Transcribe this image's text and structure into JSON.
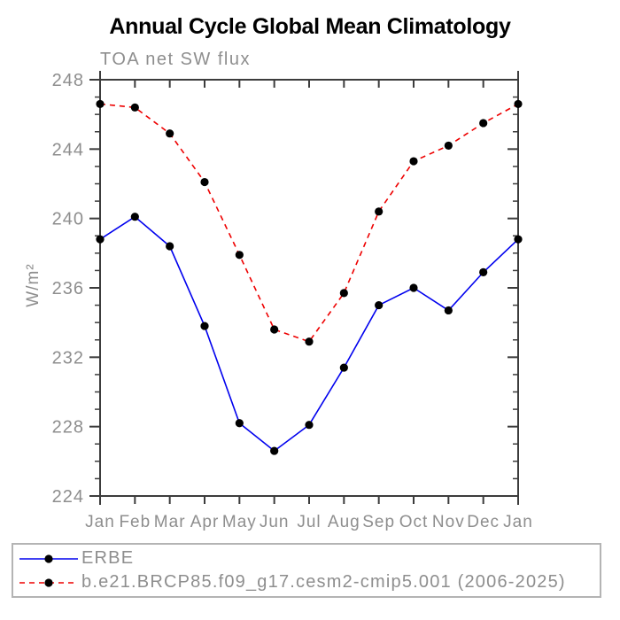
{
  "chart_data": {
    "type": "line",
    "title": "Annual Cycle Global Mean Climatology",
    "subtitle": "TOA net SW flux",
    "ylabel": "W/m²",
    "xlabel": "",
    "x_labels": [
      "Jan",
      "Feb",
      "Mar",
      "Apr",
      "May",
      "Jun",
      "Jul",
      "Aug",
      "Sep",
      "Oct",
      "Nov",
      "Dec",
      "Jan"
    ],
    "ylim": [
      224,
      248
    ],
    "yticks": {
      "major_step": 4,
      "minor_step": 1,
      "major_labels": [
        "224",
        "228",
        "232",
        "236",
        "240",
        "244",
        "248"
      ]
    },
    "grid": false,
    "legend_position": "bottom-left",
    "series": [
      {
        "name": "ERBE",
        "color": "#0000ee",
        "line_style": "solid",
        "marker": "filled-circle",
        "marker_color": "#000000",
        "values": [
          238.8,
          240.1,
          238.4,
          233.8,
          228.2,
          226.6,
          228.1,
          231.4,
          235.0,
          236.0,
          234.7,
          236.9,
          238.8
        ]
      },
      {
        "name": "b.e21.BRCP85.f09_g17.cesm2-cmip5.001 (2006-2025)",
        "color": "#ee0000",
        "line_style": "dashed",
        "marker": "filled-circle",
        "marker_color": "#000000",
        "values": [
          246.6,
          246.4,
          244.9,
          242.1,
          237.9,
          233.6,
          232.9,
          235.7,
          240.4,
          243.3,
          244.2,
          245.5,
          246.6
        ]
      }
    ]
  },
  "colors": {
    "axis": "#3c3c3c",
    "tick_label": "#8e8e8e",
    "title": "#000000",
    "legend_border": "#b4b4b4",
    "background": "#ffffff"
  }
}
